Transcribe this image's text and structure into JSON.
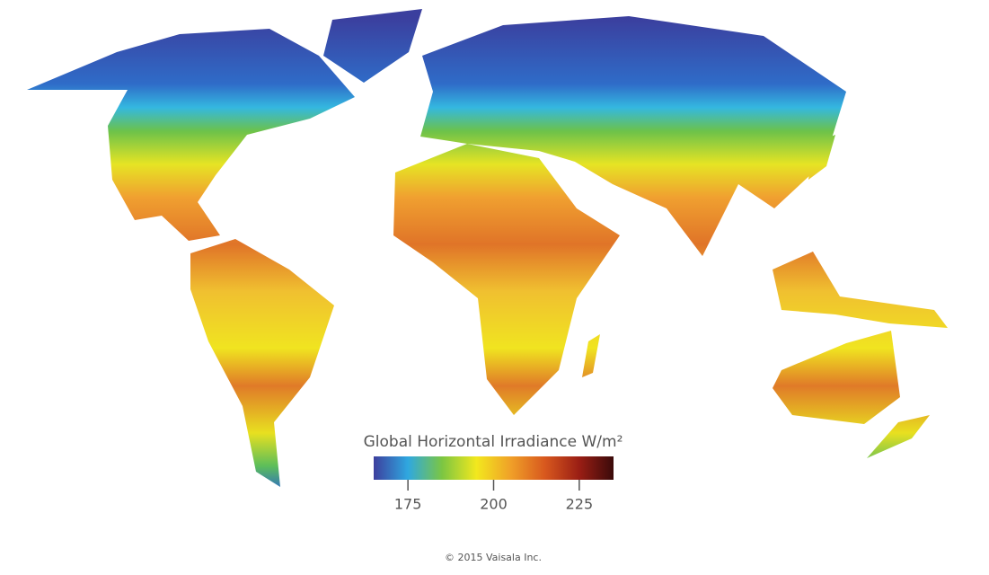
{
  "colorbar": {
    "title": "Global Horizontal Irradiance W/m²",
    "lim": [
      165,
      235
    ],
    "ticks": [
      175,
      200,
      225
    ],
    "colors": [
      "#3d3f9e",
      "#2fa8e0",
      "#7cc642",
      "#f2e81e",
      "#f0a028",
      "#d8581e",
      "#9a1e14",
      "#3a0a0a"
    ]
  },
  "footer": {
    "copyright": "© 2015 Vaisala Inc."
  }
}
